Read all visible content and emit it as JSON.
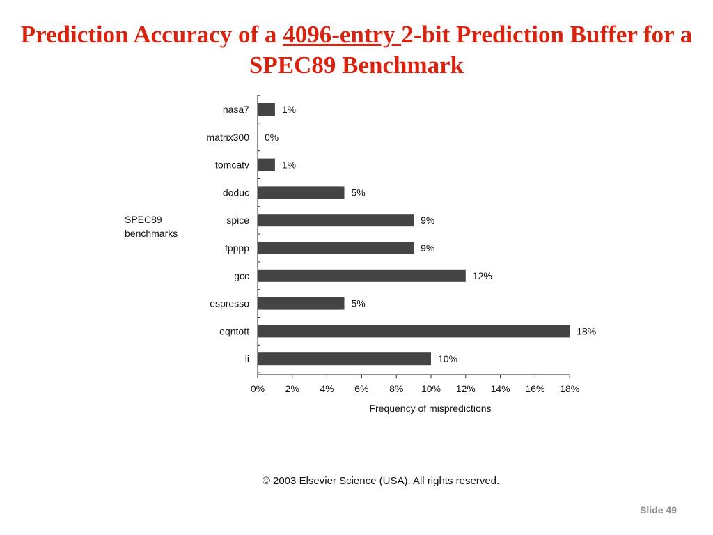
{
  "slide": {
    "title_part1": "Prediction Accuracy of a ",
    "title_link": "4096-entry ",
    "title_part2": "2-bit Prediction Buffer for a SPEC89 Benchmark",
    "copyright": "© 2003 Elsevier Science (USA). All rights reserved.",
    "slide_number": "Slide 49",
    "title_color": "#d9230f",
    "bar_color": "#444444"
  },
  "chart_data": {
    "type": "bar",
    "orientation": "horizontal",
    "category_axis_label_lines": [
      "SPEC89",
      "benchmarks"
    ],
    "xlabel": "Frequency of mispredictions",
    "categories": [
      "nasa7",
      "matrix300",
      "tomcatv",
      "doduc",
      "spice",
      "fpppp",
      "gcc",
      "espresso",
      "eqntott",
      "li"
    ],
    "values": [
      1,
      0,
      1,
      5,
      9,
      9,
      12,
      5,
      18,
      10
    ],
    "value_labels": [
      "1%",
      "0%",
      "1%",
      "5%",
      "9%",
      "9%",
      "12%",
      "5%",
      "18%",
      "10%"
    ],
    "xlim": [
      0,
      18
    ],
    "xticks": [
      0,
      2,
      4,
      6,
      8,
      10,
      12,
      14,
      16,
      18
    ],
    "xtick_labels": [
      "0%",
      "2%",
      "4%",
      "6%",
      "8%",
      "10%",
      "12%",
      "14%",
      "16%",
      "18%"
    ],
    "grid": false,
    "legend": "none"
  }
}
